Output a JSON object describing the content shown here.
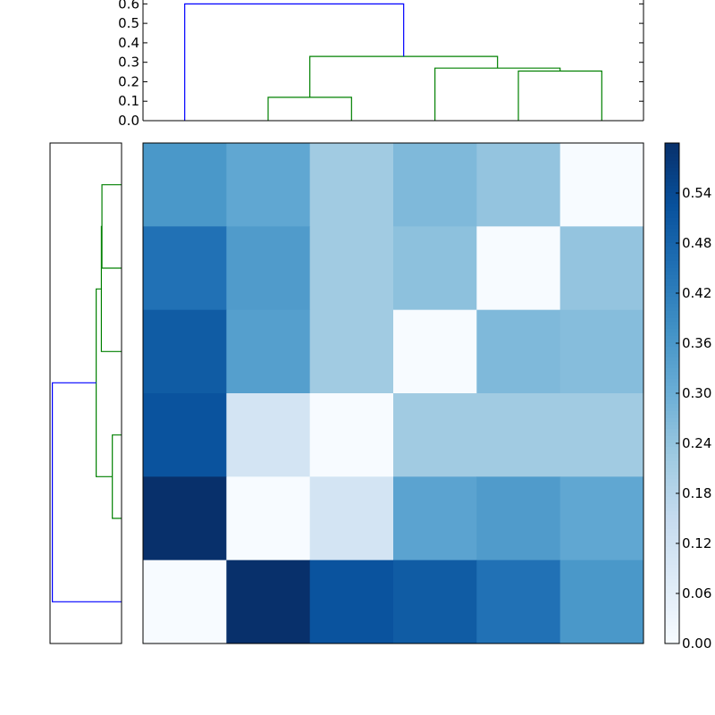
{
  "chart_data": [
    {
      "type": "dendrogram",
      "panel": "top",
      "ylim": [
        0,
        0.62
      ],
      "yticks": [
        0.0,
        0.1,
        0.2,
        0.3,
        0.4,
        0.5,
        0.6
      ],
      "ytick_labels": [
        "0.0",
        "0.1",
        "0.2",
        "0.3",
        "0.4",
        "0.5",
        "0.6"
      ],
      "leaf_count": 6,
      "links": [
        {
          "leaves": [
            2.5,
            3.5
          ],
          "base_heights": [
            0,
            0
          ],
          "height": 0.12,
          "color": "#008000"
        },
        {
          "leaves": [
            5.5,
            6.5
          ],
          "base_heights": [
            0,
            0
          ],
          "height": 0.255,
          "color": "#008000"
        },
        {
          "leaves": [
            4.5,
            6.0
          ],
          "base_heights": [
            0,
            0.255
          ],
          "height": 0.27,
          "color": "#008000"
        },
        {
          "leaves": [
            3.0,
            5.25
          ],
          "base_heights": [
            0.12,
            0.27
          ],
          "height": 0.33,
          "color": "#008000"
        },
        {
          "leaves": [
            1.5,
            4.125
          ],
          "base_heights": [
            0,
            0.33
          ],
          "height": 0.6,
          "color": "#0000ff"
        }
      ]
    },
    {
      "type": "dendrogram",
      "panel": "left",
      "orientation": "left",
      "xlim": [
        0.62,
        0
      ],
      "leaf_count": 6,
      "links": [
        {
          "leaves": [
            1.5,
            2.5
          ],
          "base_heights": [
            0,
            0
          ],
          "height": 0.17,
          "color": "#008000"
        },
        {
          "leaves": [
            2.0,
            3.5
          ],
          "base_heights": [
            0.17,
            0
          ],
          "height": 0.175,
          "color": "#008000"
        },
        {
          "leaves": [
            4.5,
            5.5
          ],
          "base_heights": [
            0,
            0
          ],
          "height": 0.08,
          "color": "#008000"
        },
        {
          "leaves": [
            2.75,
            5.0
          ],
          "base_heights": [
            0.175,
            0.08
          ],
          "height": 0.22,
          "color": "#008000"
        },
        {
          "leaves": [
            3.875,
            6.5
          ],
          "base_heights": [
            0.22,
            0
          ],
          "height": 0.6,
          "color": "#0000ff"
        }
      ]
    },
    {
      "type": "heatmap",
      "panel": "main",
      "colormap": "Blues",
      "colormap_stops": [
        "#f7fbff",
        "#deebf7",
        "#c6dbef",
        "#9ecae1",
        "#6baed6",
        "#4292c6",
        "#2171b5",
        "#08519c",
        "#08306b"
      ],
      "vmin": 0.0,
      "vmax": 0.6,
      "values": [
        [
          0.36,
          0.32,
          0.22,
          0.27,
          0.24,
          0.0
        ],
        [
          0.45,
          0.35,
          0.22,
          0.25,
          0.0,
          0.24
        ],
        [
          0.5,
          0.34,
          0.22,
          0.0,
          0.27,
          0.26
        ],
        [
          0.52,
          0.11,
          0.0,
          0.22,
          0.22,
          0.22
        ],
        [
          0.6,
          0.0,
          0.11,
          0.33,
          0.35,
          0.32
        ],
        [
          0.0,
          0.6,
          0.52,
          0.5,
          0.45,
          0.36
        ]
      ],
      "colorbar": {
        "ticks": [
          0.0,
          0.06,
          0.12,
          0.18,
          0.24,
          0.3,
          0.36,
          0.42,
          0.48,
          0.54
        ],
        "tick_labels": [
          "0.00",
          "0.06",
          "0.12",
          "0.18",
          "0.24",
          "0.30",
          "0.36",
          "0.42",
          "0.48",
          "0.54"
        ]
      }
    }
  ]
}
